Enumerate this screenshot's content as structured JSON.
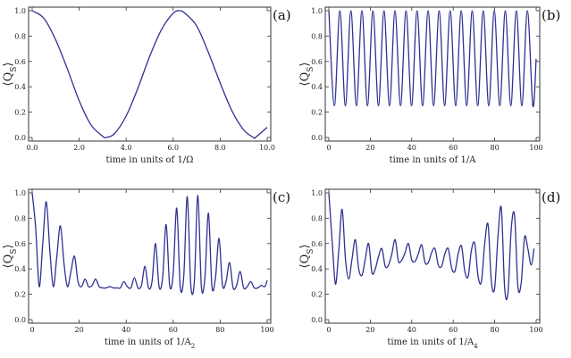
{
  "chart_data": [
    {
      "type": "line",
      "panel_label": "(a)",
      "xlabel": "time in units of 1/Ω",
      "ylabel": "⟨Q",
      "ylabel_sub": "S",
      "xlim": [
        0,
        10
      ],
      "ylim": [
        0,
        1
      ],
      "xticks": [
        0.0,
        2.0,
        4.0,
        6.0,
        8.0,
        10.0
      ],
      "xtick_labels": [
        "0.0",
        "2.0",
        "4.0",
        "6.0",
        "8.0",
        "10.0"
      ],
      "yticks": [
        0.0,
        0.2,
        0.4,
        0.6,
        0.8,
        1.0
      ],
      "ytick_labels": [
        "0.0",
        "0.2",
        "0.4",
        "0.6",
        "0.8",
        "1.0"
      ],
      "grid": false,
      "series": [
        {
          "color": "#2e3192",
          "x": [
            0,
            0.5,
            1.0,
            1.5,
            2.0,
            2.5,
            3.0,
            3.14,
            3.5,
            4.0,
            4.5,
            5.0,
            5.5,
            6.0,
            6.28,
            6.5,
            7.0,
            7.5,
            8.0,
            8.5,
            9.0,
            9.42,
            9.5,
            10.0
          ],
          "y": [
            1.0,
            0.94,
            0.77,
            0.54,
            0.29,
            0.1,
            0.01,
            0.0,
            0.03,
            0.17,
            0.39,
            0.64,
            0.85,
            0.98,
            1.0,
            0.98,
            0.88,
            0.67,
            0.43,
            0.21,
            0.06,
            0.0,
            0.0,
            0.08
          ]
        }
      ]
    },
    {
      "type": "line",
      "panel_label": "(b)",
      "xlabel": "time in units of 1/A",
      "ylabel": "⟨Q",
      "ylabel_sub": "S",
      "xlim": [
        0,
        100
      ],
      "ylim": [
        0,
        1
      ],
      "xticks": [
        0,
        20,
        40,
        60,
        80,
        100
      ],
      "xtick_labels": [
        "0",
        "20",
        "40",
        "60",
        "80",
        "100"
      ],
      "yticks": [
        0.0,
        0.2,
        0.4,
        0.6,
        0.8,
        1.0
      ],
      "ytick_labels": [
        "0.0",
        "0.2",
        "0.4",
        "0.6",
        "0.8",
        "1.0"
      ],
      "grid": false,
      "series": [
        {
          "color": "#2e3192",
          "x": [
            0,
            2.66,
            5.32,
            7.98,
            10.64,
            13.3,
            15.96,
            18.62,
            21.28,
            23.94,
            26.6,
            29.26,
            31.92,
            34.58,
            37.24,
            39.9,
            42.56,
            45.22,
            47.88,
            50.54,
            53.2,
            55.86,
            58.52,
            61.18,
            63.84,
            66.5,
            69.16,
            71.82,
            74.48,
            77.14,
            79.8,
            82.46,
            85.12,
            87.78,
            90.44,
            93.1,
            95.76,
            98.42,
            100
          ],
          "y": [
            1.0,
            0.25,
            1.0,
            0.25,
            1.0,
            0.25,
            1.0,
            0.25,
            1.0,
            0.25,
            1.0,
            0.25,
            1.0,
            0.25,
            1.0,
            0.25,
            1.0,
            0.25,
            1.0,
            0.25,
            1.0,
            0.25,
            1.0,
            0.25,
            1.0,
            0.25,
            1.0,
            0.25,
            1.0,
            0.25,
            1.0,
            0.25,
            1.0,
            0.25,
            1.0,
            0.25,
            1.0,
            0.25,
            0.62
          ]
        }
      ]
    },
    {
      "type": "line",
      "panel_label": "(c)",
      "xlabel": "time in units of 1/A",
      "xlabel_sub": "2",
      "ylabel": "⟨Q",
      "ylabel_sub": "S",
      "xlim": [
        0,
        100
      ],
      "ylim": [
        0,
        1
      ],
      "xticks": [
        0,
        20,
        40,
        60,
        80,
        100
      ],
      "xtick_labels": [
        "0",
        "20",
        "40",
        "60",
        "80",
        "100"
      ],
      "yticks": [
        0.0,
        0.2,
        0.4,
        0.6,
        0.8,
        1.0
      ],
      "ytick_labels": [
        "0.0",
        "0.2",
        "0.4",
        "0.6",
        "0.8",
        "1.0"
      ],
      "grid": false,
      "series": [
        {
          "color": "#2e3192",
          "x": [
            0,
            1.5,
            3.0,
            4.5,
            6.0,
            7.5,
            9.0,
            10.5,
            12.0,
            13.5,
            15.0,
            16.5,
            18.0,
            19.5,
            21.0,
            22.5,
            24.0,
            25.5,
            27.0,
            28.5,
            30.0,
            31.5,
            33.0,
            34.5,
            36.0,
            37.5,
            39.0,
            40.5,
            42.0,
            43.5,
            45.0,
            46.5,
            48.0,
            49.5,
            51.0,
            52.5,
            54.0,
            55.5,
            57.0,
            58.5,
            60.0,
            61.5,
            63.0,
            64.5,
            66.0,
            67.5,
            69.0,
            70.5,
            72.0,
            73.5,
            75.0,
            76.5,
            78.0,
            79.5,
            81.0,
            82.5,
            84.0,
            85.5,
            87.0,
            88.5,
            90.0,
            91.5,
            93.0,
            94.5,
            96.0,
            97.5,
            99.0,
            100
          ],
          "y": [
            1.0,
            0.72,
            0.26,
            0.6,
            0.93,
            0.55,
            0.26,
            0.5,
            0.74,
            0.45,
            0.26,
            0.38,
            0.5,
            0.3,
            0.26,
            0.32,
            0.26,
            0.27,
            0.32,
            0.26,
            0.25,
            0.25,
            0.26,
            0.25,
            0.25,
            0.25,
            0.3,
            0.26,
            0.25,
            0.33,
            0.25,
            0.27,
            0.42,
            0.25,
            0.3,
            0.6,
            0.26,
            0.33,
            0.75,
            0.27,
            0.36,
            0.88,
            0.26,
            0.34,
            0.97,
            0.27,
            0.3,
            0.98,
            0.26,
            0.33,
            0.84,
            0.26,
            0.33,
            0.64,
            0.27,
            0.3,
            0.45,
            0.25,
            0.27,
            0.38,
            0.25,
            0.26,
            0.3,
            0.25,
            0.25,
            0.27,
            0.26,
            0.31
          ]
        }
      ]
    },
    {
      "type": "line",
      "panel_label": "(d)",
      "xlabel": "time in units of 1/A",
      "xlabel_sub": "4",
      "ylabel": "⟨Q",
      "ylabel_sub": "S",
      "xlim": [
        0,
        100
      ],
      "ylim": [
        0,
        1
      ],
      "xticks": [
        0,
        20,
        40,
        60,
        80,
        100
      ],
      "xtick_labels": [
        "0",
        "20",
        "40",
        "60",
        "80",
        "100"
      ],
      "yticks": [
        0.0,
        0.2,
        0.4,
        0.6,
        0.8,
        1.0
      ],
      "ytick_labels": [
        "0.0",
        "0.2",
        "0.4",
        "0.6",
        "0.8",
        "1.0"
      ],
      "grid": false,
      "series": [
        {
          "color": "#2e3192",
          "x": [
            0,
            1.6,
            3.2,
            4.8,
            6.4,
            8.0,
            9.6,
            11.2,
            12.8,
            14.4,
            16.0,
            17.6,
            19.2,
            20.8,
            22.4,
            24.0,
            25.6,
            27.2,
            28.8,
            30.4,
            32.0,
            33.6,
            35.2,
            36.8,
            38.4,
            40.0,
            41.6,
            43.2,
            44.8,
            46.4,
            48.0,
            49.6,
            51.2,
            52.8,
            54.4,
            56.0,
            57.6,
            59.2,
            60.8,
            62.4,
            64.0,
            65.6,
            67.2,
            68.8,
            70.4,
            72.0,
            73.6,
            75.2,
            76.8,
            78.4,
            80.0,
            81.6,
            83.2,
            84.8,
            86.4,
            88.0,
            89.6,
            91.2,
            92.8,
            94.4,
            96.0,
            97.6,
            99.0
          ],
          "y": [
            1.0,
            0.62,
            0.28,
            0.55,
            0.87,
            0.48,
            0.32,
            0.48,
            0.63,
            0.4,
            0.35,
            0.48,
            0.6,
            0.37,
            0.4,
            0.5,
            0.56,
            0.42,
            0.43,
            0.52,
            0.63,
            0.46,
            0.47,
            0.53,
            0.6,
            0.47,
            0.46,
            0.52,
            0.59,
            0.45,
            0.45,
            0.53,
            0.56,
            0.43,
            0.42,
            0.52,
            0.56,
            0.41,
            0.38,
            0.52,
            0.58,
            0.38,
            0.34,
            0.55,
            0.6,
            0.34,
            0.3,
            0.6,
            0.75,
            0.3,
            0.25,
            0.66,
            0.88,
            0.25,
            0.21,
            0.72,
            0.82,
            0.26,
            0.29,
            0.65,
            0.56,
            0.43,
            0.56
          ]
        }
      ]
    }
  ]
}
